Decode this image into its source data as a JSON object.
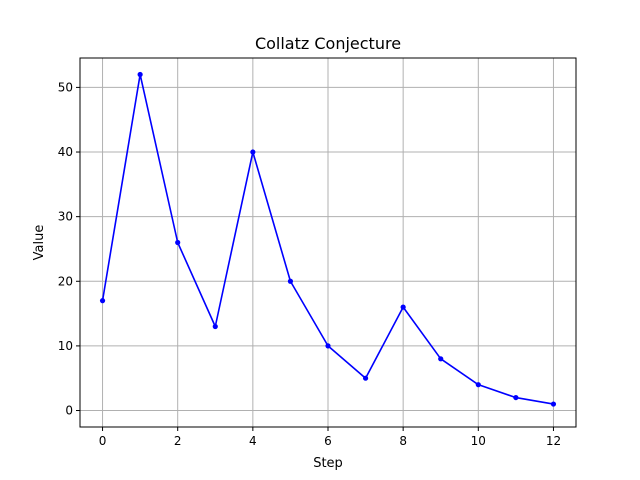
{
  "chart_data": {
    "type": "line",
    "title": "Collatz Conjecture",
    "xlabel": "Step",
    "ylabel": "Value",
    "x": [
      0,
      1,
      2,
      3,
      4,
      5,
      6,
      7,
      8,
      9,
      10,
      11,
      12
    ],
    "series": [
      {
        "values": [
          17,
          52,
          26,
          13,
          40,
          20,
          10,
          5,
          16,
          8,
          4,
          2,
          1
        ],
        "color": "#0000ff",
        "marker": "circle"
      }
    ],
    "xlim": [
      -0.6,
      12.6
    ],
    "ylim": [
      -2.55,
      54.55
    ],
    "xticks": [
      0,
      2,
      4,
      6,
      8,
      10,
      12
    ],
    "yticks": [
      0,
      10,
      20,
      30,
      40,
      50
    ],
    "grid": true
  }
}
